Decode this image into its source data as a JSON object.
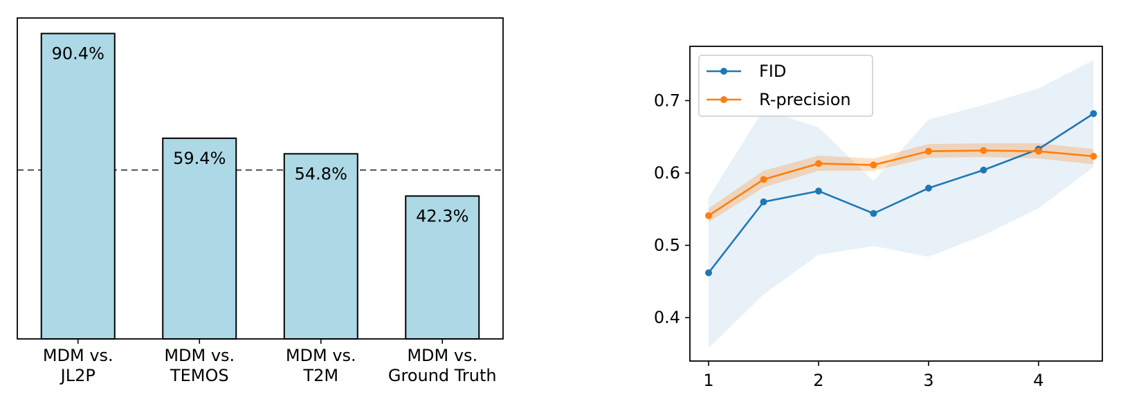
{
  "chart_data": [
    {
      "type": "bar",
      "categories": [
        [
          "MDM vs.",
          "JL2P"
        ],
        [
          "MDM vs.",
          "TEMOS"
        ],
        [
          "MDM vs.",
          "T2M"
        ],
        [
          "MDM vs.",
          "Ground Truth"
        ]
      ],
      "values": [
        90.4,
        59.4,
        54.8,
        42.3
      ],
      "data_labels": [
        "90.4%",
        "59.4%",
        "54.8%",
        "42.3%"
      ],
      "reference_line": 50,
      "ylim": [
        0,
        95
      ],
      "bar_color": "#add8e6",
      "grid": false
    },
    {
      "type": "line",
      "x": [
        1,
        1.5,
        2,
        2.5,
        3,
        3.5,
        4,
        4.5
      ],
      "xticks": [
        "1",
        "2",
        "3",
        "4"
      ],
      "yticks": [
        "0.4",
        "0.5",
        "0.6",
        "0.7"
      ],
      "xlim": [
        0.83,
        4.58
      ],
      "ylim": [
        0.34,
        0.775
      ],
      "legend_position": "top-left",
      "grid": false,
      "series": [
        {
          "name": "FID",
          "color": "#1f77b4",
          "values": [
            0.462,
            0.56,
            0.575,
            0.544,
            0.579,
            0.604,
            0.633,
            0.682
          ],
          "band_lower": [
            0.358,
            0.432,
            0.487,
            0.499,
            0.484,
            0.514,
            0.551,
            0.608
          ],
          "band_upper": [
            0.566,
            0.688,
            0.663,
            0.589,
            0.674,
            0.694,
            0.717,
            0.756
          ]
        },
        {
          "name": "R-precision",
          "color": "#ff7f0e",
          "values": [
            0.541,
            0.591,
            0.613,
            0.611,
            0.63,
            0.631,
            0.63,
            0.623
          ],
          "band_lower": [
            0.532,
            0.58,
            0.603,
            0.603,
            0.621,
            0.622,
            0.62,
            0.612
          ],
          "band_upper": [
            0.551,
            0.603,
            0.624,
            0.62,
            0.64,
            0.641,
            0.641,
            0.633
          ]
        }
      ]
    }
  ]
}
